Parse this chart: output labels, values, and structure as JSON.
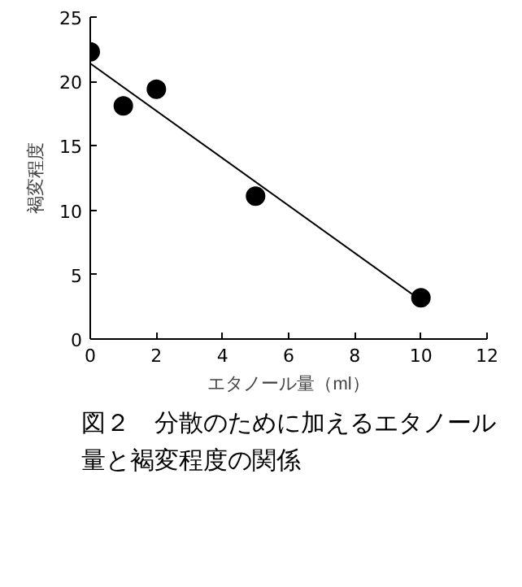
{
  "chart_data": {
    "type": "scatter",
    "xlabel": "エタノール量（ml）",
    "ylabel": "褐変程度",
    "annotations": [
      "図２　分散のために加えるエタノール量と褐変程度の関係"
    ],
    "xlim": [
      0,
      12
    ],
    "xticks": [
      0,
      2,
      4,
      6,
      8,
      10,
      12
    ],
    "ylim": [
      0,
      25
    ],
    "yticks": [
      0,
      5,
      10,
      15,
      20,
      25
    ],
    "grid": false,
    "series": [
      {
        "color": "#000000",
        "marker": "circle",
        "x": [
          0,
          1,
          2,
          5,
          10
        ],
        "values": [
          22.3,
          18.1,
          19.4,
          11.1,
          3.2
        ]
      },
      {
        "type": "line",
        "color": "#000000",
        "marker": "none",
        "x": [
          0,
          10
        ],
        "values": [
          21.4,
          3.0
        ]
      }
    ]
  }
}
